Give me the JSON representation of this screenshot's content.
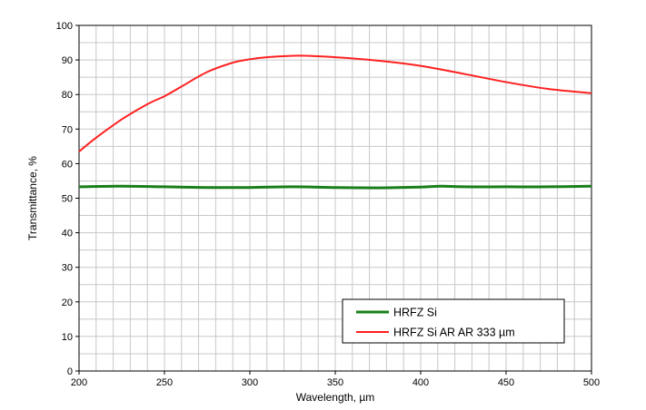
{
  "chart_data": {
    "type": "line",
    "title": "",
    "xlabel": "Wavelength, µm",
    "ylabel": "Transmittance, %",
    "xlim": [
      200,
      500
    ],
    "ylim": [
      0,
      100
    ],
    "x_ticks": [
      200,
      250,
      300,
      350,
      400,
      450,
      500
    ],
    "y_ticks": [
      0,
      10,
      20,
      30,
      40,
      50,
      60,
      70,
      80,
      90,
      100
    ],
    "grid": true,
    "legend_position": "bottom-right",
    "series": [
      {
        "name": "HRFZ Si",
        "color": "#1a7f1a",
        "x": [
          200,
          225,
          250,
          275,
          300,
          325,
          350,
          375,
          400,
          412,
          425,
          450,
          475,
          500
        ],
        "y": [
          53.3,
          53.5,
          53.3,
          53.1,
          53.1,
          53.3,
          53.1,
          53.0,
          53.2,
          53.5,
          53.3,
          53.3,
          53.3,
          53.5
        ]
      },
      {
        "name": "HRFZ Si AR AR 333 µm",
        "color": "#ff2020",
        "x": [
          200,
          210,
          225,
          240,
          250,
          260,
          275,
          290,
          300,
          310,
          325,
          333,
          350,
          375,
          400,
          425,
          450,
          475,
          500
        ],
        "y": [
          63.5,
          67.5,
          72.8,
          77.2,
          79.5,
          82.3,
          86.5,
          89.2,
          90.2,
          90.8,
          91.2,
          91.2,
          90.8,
          89.8,
          88.3,
          86.0,
          83.6,
          81.6,
          80.4
        ]
      }
    ]
  }
}
